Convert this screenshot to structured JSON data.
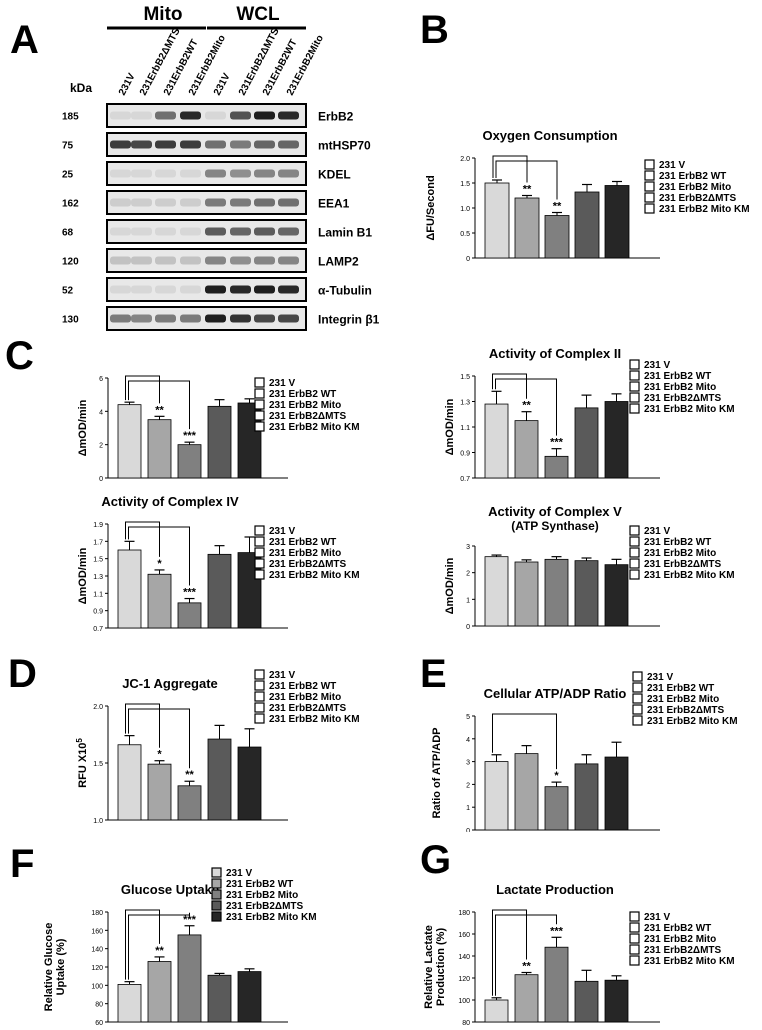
{
  "panels": {
    "A": "A",
    "B": "B",
    "C": "C",
    "D": "D",
    "E": "E",
    "F": "F",
    "G": "G"
  },
  "blot": {
    "group_mito": "Mito",
    "group_wcl": "WCL",
    "kda_label": "kDa",
    "lanes": [
      "231V",
      "231ErbB2ΔMTS",
      "231ErbB2WT",
      "231ErbB2Mito",
      "231V",
      "231ErbB2ΔMTS",
      "231ErbB2WT",
      "231ErbB2Mito"
    ],
    "rows": [
      {
        "kda": "185",
        "label": "ErbB2",
        "bands": [
          0.05,
          0.05,
          0.55,
          0.9,
          0.05,
          0.7,
          0.95,
          0.9
        ]
      },
      {
        "kda": "75",
        "label": "mtHSP70",
        "bands": [
          0.8,
          0.75,
          0.8,
          0.8,
          0.55,
          0.5,
          0.6,
          0.6
        ]
      },
      {
        "kda": "25",
        "label": "KDEL",
        "bands": [
          0.05,
          0.05,
          0.05,
          0.05,
          0.45,
          0.4,
          0.45,
          0.45
        ]
      },
      {
        "kda": "162",
        "label": "EEA1",
        "bands": [
          0.1,
          0.1,
          0.1,
          0.1,
          0.5,
          0.5,
          0.55,
          0.55
        ]
      },
      {
        "kda": "68",
        "label": "Lamin B1",
        "bands": [
          0.05,
          0.05,
          0.05,
          0.05,
          0.65,
          0.6,
          0.65,
          0.6
        ]
      },
      {
        "kda": "120",
        "label": "LAMP2",
        "bands": [
          0.15,
          0.15,
          0.15,
          0.15,
          0.45,
          0.4,
          0.45,
          0.45
        ]
      },
      {
        "kda": "52",
        "label": "α-Tubulin",
        "bands": [
          0.05,
          0.05,
          0.05,
          0.05,
          0.95,
          0.9,
          0.95,
          0.9
        ]
      },
      {
        "kda": "130",
        "label": "Integrin β1",
        "bands": [
          0.5,
          0.45,
          0.5,
          0.5,
          0.95,
          0.85,
          0.75,
          0.75
        ]
      }
    ]
  },
  "legend": {
    "entries": [
      "231 V",
      "231 ErbB2 WT",
      "231 ErbB2 Mito",
      "231 ErbB2ΔMTS",
      "231 ErbB2 Mito KM"
    ],
    "colors": [
      "#d9d9d9",
      "#a6a6a6",
      "#808080",
      "#5a5a5a",
      "#262626"
    ]
  },
  "chart_data": [
    {
      "id": "B",
      "type": "bar",
      "title": "Oxygen Consumption",
      "title2": "",
      "ylabel": "ΔFU/Second",
      "ylim": [
        0,
        2.0
      ],
      "ticks": [
        0,
        0.5,
        1.0,
        1.5,
        2.0
      ],
      "tick_labels": [
        "0",
        "0.5",
        "1.0",
        "1.5",
        "2.0"
      ],
      "values": [
        1.5,
        1.2,
        0.85,
        1.32,
        1.45
      ],
      "errors": [
        0.06,
        0.05,
        0.06,
        0.15,
        0.08
      ],
      "sig": [
        "",
        "**",
        "**",
        "",
        ""
      ],
      "brackets": [
        [
          0,
          1
        ],
        [
          0,
          2
        ]
      ],
      "filled_legend": false
    },
    {
      "id": "C1",
      "type": "bar",
      "title": "Activity of Complex I",
      "title2": "",
      "ylabel": "ΔmOD/min",
      "ylim": [
        0,
        6
      ],
      "ticks": [
        0,
        2,
        4,
        6
      ],
      "tick_labels": [
        "0",
        "2",
        "4",
        "6"
      ],
      "values": [
        4.4,
        3.5,
        2.0,
        4.3,
        4.5
      ],
      "errors": [
        0.15,
        0.2,
        0.15,
        0.4,
        0.25
      ],
      "sig": [
        "",
        "**",
        "***",
        "",
        ""
      ],
      "brackets": [
        [
          0,
          1
        ],
        [
          0,
          2
        ]
      ],
      "filled_legend": false
    },
    {
      "id": "C2",
      "type": "bar",
      "title": "Activity of Complex II",
      "title2": "",
      "ylabel": "ΔmOD/min",
      "ylim": [
        0.7,
        1.5
      ],
      "ticks": [
        0.7,
        0.9,
        1.1,
        1.3,
        1.5
      ],
      "tick_labels": [
        "0.7",
        "0.9",
        "1.1",
        "1.3",
        "1.5"
      ],
      "values": [
        1.28,
        1.15,
        0.87,
        1.25,
        1.3
      ],
      "errors": [
        0.1,
        0.07,
        0.06,
        0.1,
        0.06
      ],
      "sig": [
        "",
        "**",
        "***",
        "",
        ""
      ],
      "brackets": [
        [
          0,
          1
        ],
        [
          0,
          2
        ]
      ],
      "filled_legend": false
    },
    {
      "id": "C3",
      "type": "bar",
      "title": "Activity of Complex IV",
      "title2": "",
      "ylabel": "ΔmOD/min",
      "ylim": [
        0.7,
        1.9
      ],
      "ticks": [
        0.7,
        0.9,
        1.1,
        1.3,
        1.5,
        1.7,
        1.9
      ],
      "tick_labels": [
        "0.7",
        "0.9",
        "1.1",
        "1.3",
        "1.5",
        "1.7",
        "1.9"
      ],
      "values": [
        1.6,
        1.32,
        0.99,
        1.55,
        1.57
      ],
      "errors": [
        0.1,
        0.05,
        0.05,
        0.1,
        0.18
      ],
      "sig": [
        "",
        "*",
        "***",
        "",
        ""
      ],
      "brackets": [
        [
          0,
          1
        ],
        [
          0,
          2
        ]
      ],
      "filled_legend": false
    },
    {
      "id": "C4",
      "type": "bar",
      "title": "Activity of Complex V",
      "title2": "(ATP Synthase)",
      "ylabel": "ΔmOD/min",
      "ylim": [
        0,
        3
      ],
      "ticks": [
        0,
        1,
        2,
        3
      ],
      "tick_labels": [
        "0",
        "1",
        "2",
        "3"
      ],
      "values": [
        2.6,
        2.4,
        2.5,
        2.45,
        2.3
      ],
      "errors": [
        0.06,
        0.08,
        0.1,
        0.1,
        0.2
      ],
      "sig": [
        "",
        "",
        "",
        "",
        ""
      ],
      "brackets": [],
      "filled_legend": false
    },
    {
      "id": "D",
      "type": "bar",
      "title": "JC-1 Aggregate",
      "title2": "",
      "ylabel": "RFU X10",
      "ylabel_sup": "5",
      "ylim": [
        1.0,
        2.0
      ],
      "ticks": [
        1.0,
        1.5,
        2.0
      ],
      "tick_labels": [
        "1.0",
        "1.5",
        "2.0"
      ],
      "values": [
        1.66,
        1.49,
        1.3,
        1.71,
        1.64
      ],
      "errors": [
        0.08,
        0.03,
        0.04,
        0.12,
        0.16
      ],
      "sig": [
        "",
        "*",
        "**",
        "",
        ""
      ],
      "brackets": [
        [
          0,
          1
        ],
        [
          0,
          2
        ]
      ],
      "filled_legend": false
    },
    {
      "id": "E",
      "type": "bar",
      "title": "Cellular ATP/ADP Ratio",
      "title2": "",
      "ylabel": "Ratio of ATP/ADP",
      "ylim": [
        0,
        5
      ],
      "ticks": [
        0,
        1,
        2,
        3,
        4,
        5
      ],
      "tick_labels": [
        "0",
        "1",
        "2",
        "3",
        "4",
        "5"
      ],
      "values": [
        3.0,
        3.35,
        1.9,
        2.9,
        3.2
      ],
      "errors": [
        0.3,
        0.35,
        0.2,
        0.4,
        0.65
      ],
      "sig": [
        "",
        "",
        "*",
        "",
        ""
      ],
      "brackets": [
        [
          0,
          2
        ]
      ],
      "filled_legend": false
    },
    {
      "id": "F",
      "type": "bar",
      "title": "Glucose Uptake",
      "title2": "",
      "ylabel": "Relative Glucose Uptake (%)",
      "ylim": [
        60,
        180
      ],
      "ticks": [
        60,
        80,
        100,
        120,
        140,
        160,
        180
      ],
      "tick_labels": [
        "60",
        "80",
        "100",
        "120",
        "140",
        "160",
        "180"
      ],
      "values": [
        101,
        126,
        155,
        111,
        115
      ],
      "errors": [
        3,
        5,
        10,
        2,
        3
      ],
      "sig": [
        "",
        "**",
        "***",
        "",
        ""
      ],
      "brackets": [
        [
          0,
          1
        ],
        [
          0,
          2
        ]
      ],
      "filled_legend": true
    },
    {
      "id": "G",
      "type": "bar",
      "title": "Lactate Production",
      "title2": "",
      "ylabel": "Relative Lactate Production (%)",
      "ylim": [
        80,
        180
      ],
      "ticks": [
        80,
        100,
        120,
        140,
        160,
        180
      ],
      "tick_labels": [
        "80",
        "100",
        "120",
        "140",
        "160",
        "180"
      ],
      "values": [
        100,
        123,
        148,
        117,
        118
      ],
      "errors": [
        2,
        2,
        9,
        10,
        4
      ],
      "sig": [
        "",
        "**",
        "***",
        "",
        ""
      ],
      "brackets": [
        [
          0,
          1
        ],
        [
          0,
          2
        ]
      ],
      "filled_legend": false
    }
  ]
}
